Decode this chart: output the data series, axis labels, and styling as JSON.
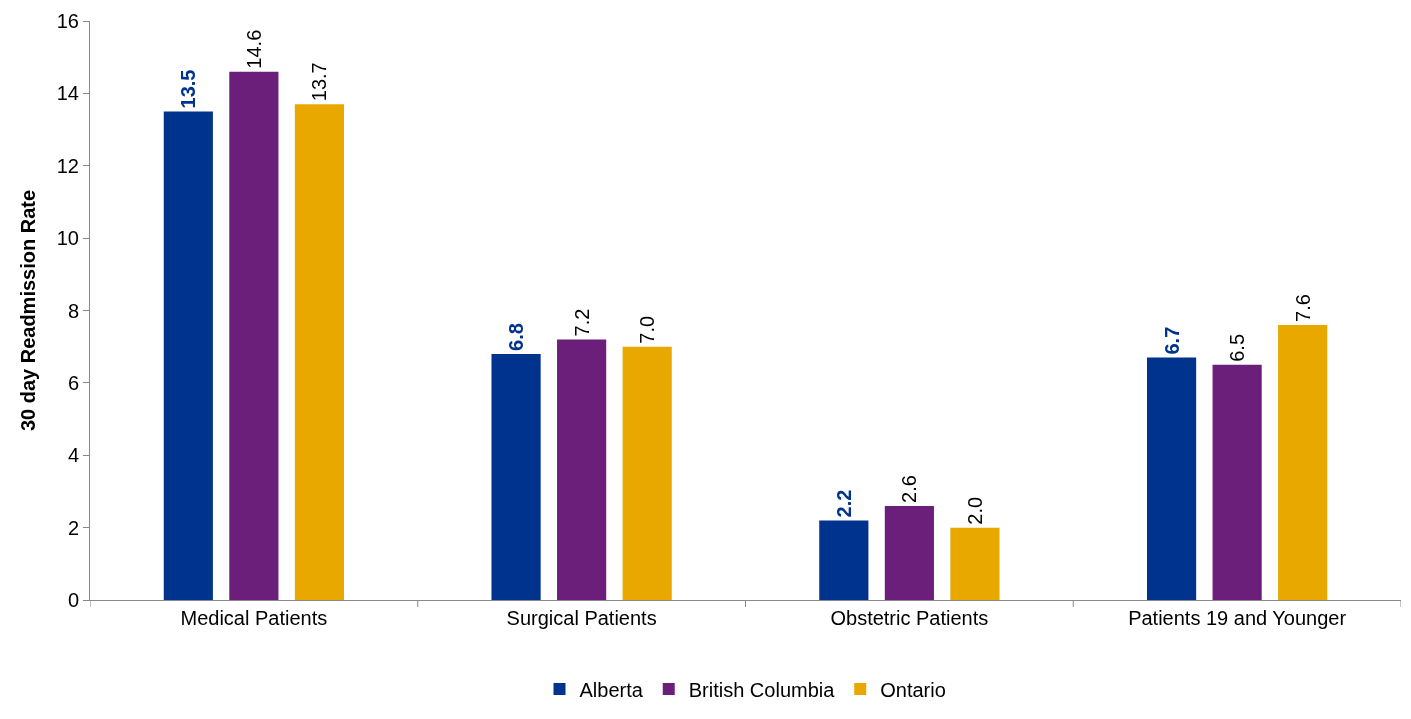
{
  "chart_data": {
    "type": "bar",
    "ylabel": "30 day Readmission Rate",
    "categories": [
      "Medical Patients",
      "Surgical Patients",
      "Obstetric Patients",
      "Patients 19 and Younger"
    ],
    "series": [
      {
        "name": "Alberta",
        "color": "#00338d",
        "values": [
          13.5,
          6.8,
          2.2,
          6.7
        ],
        "value_labels": [
          "13.5",
          "6.8",
          "2.2",
          "6.7"
        ]
      },
      {
        "name": "British Columbia",
        "color": "#6c1f7a",
        "values": [
          14.6,
          7.2,
          2.6,
          6.5
        ],
        "value_labels": [
          "14.6",
          "7.2",
          "2.6",
          "6.5"
        ]
      },
      {
        "name": "Ontario",
        "color": "#e8a800",
        "values": [
          13.7,
          7.0,
          2.0,
          7.6
        ],
        "value_labels": [
          "13.7",
          "7.0",
          "2.0",
          "7.6"
        ]
      }
    ],
    "ylim": [
      0,
      16
    ],
    "yticks": [
      0,
      2,
      4,
      6,
      8,
      10,
      12,
      14,
      16
    ],
    "legend": "bottom"
  }
}
